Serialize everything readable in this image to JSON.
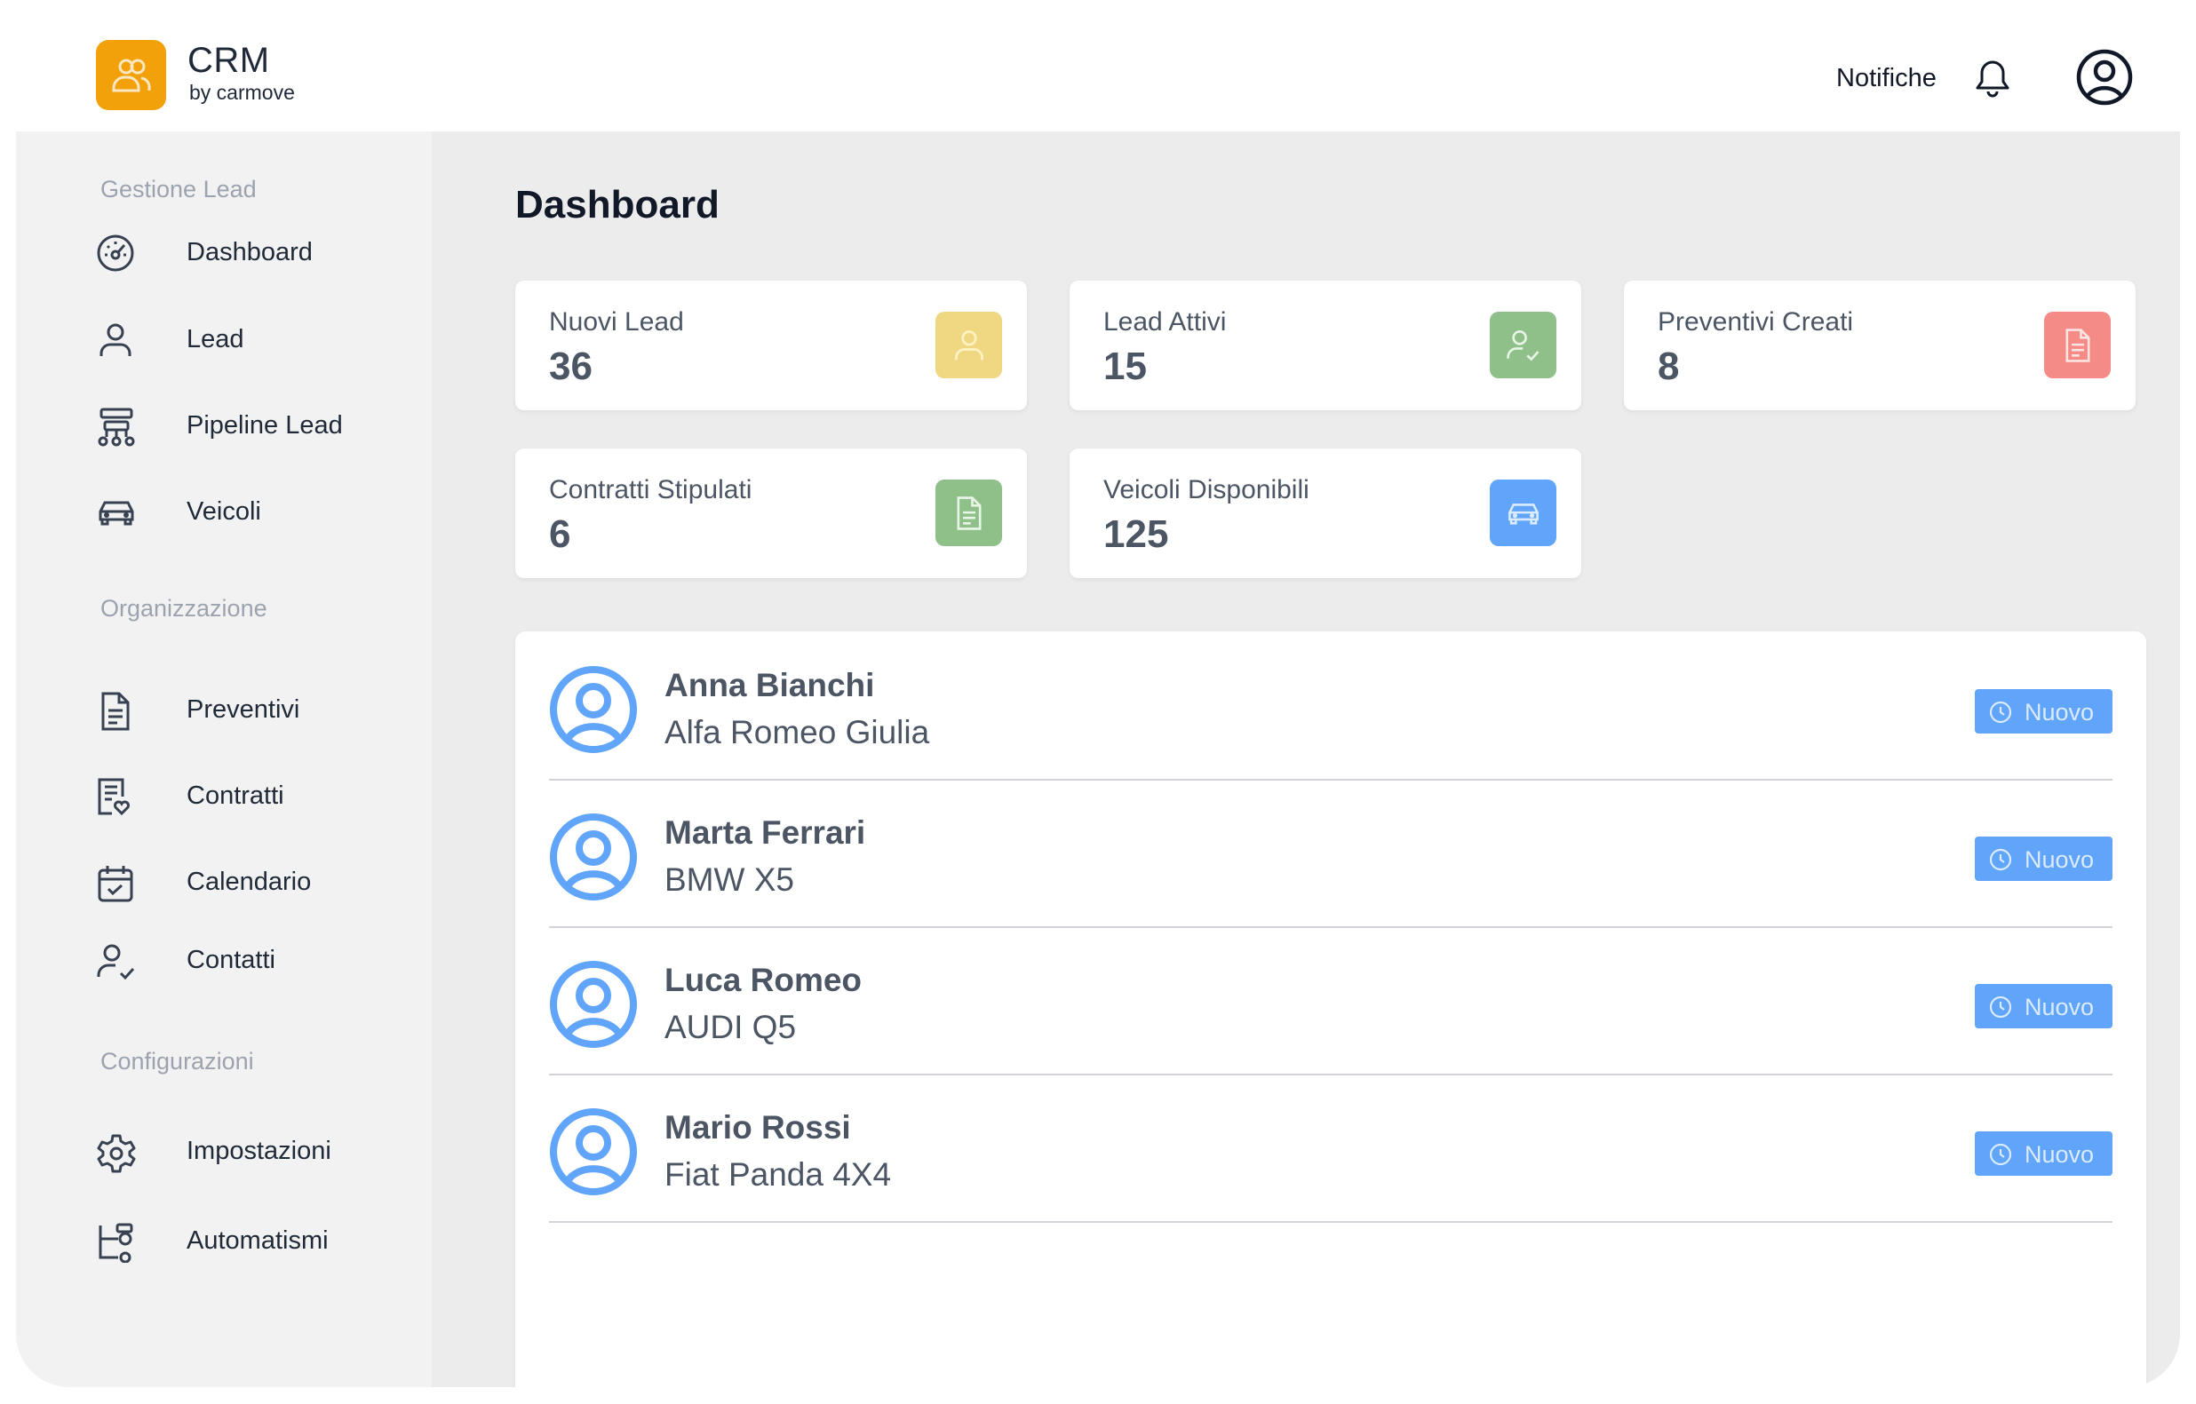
{
  "header": {
    "brand_title": "CRM",
    "brand_subtitle": "by carmove",
    "notifications_label": "Notifiche",
    "logo_icon": "users-icon",
    "bell_icon": "bell-icon",
    "user_icon": "user-circle-icon",
    "brand_color": "#f2a10a"
  },
  "sidebar": {
    "sections": [
      {
        "title": "Gestione Lead"
      },
      {
        "title": "Organizzazione"
      },
      {
        "title": "Configurazioni"
      }
    ],
    "items": [
      {
        "label": "Dashboard",
        "icon": "gauge-icon"
      },
      {
        "label": "Lead",
        "icon": "user-icon"
      },
      {
        "label": "Pipeline Lead",
        "icon": "pipeline-icon"
      },
      {
        "label": "Veicoli",
        "icon": "car-icon"
      },
      {
        "label": "Preventivi",
        "icon": "document-icon"
      },
      {
        "label": "Contratti",
        "icon": "contract-icon"
      },
      {
        "label": "Calendario",
        "icon": "calendar-icon"
      },
      {
        "label": "Contatti",
        "icon": "user-check-icon"
      },
      {
        "label": "Impostazioni",
        "icon": "gear-icon"
      },
      {
        "label": "Automatismi",
        "icon": "automation-icon"
      }
    ]
  },
  "main": {
    "title": "Dashboard",
    "stats": [
      {
        "label": "Nuovi Lead",
        "value": "36",
        "icon": "user-icon",
        "color": "#f0d882"
      },
      {
        "label": "Lead Attivi",
        "value": "15",
        "icon": "user-check-icon",
        "color": "#8fc08a"
      },
      {
        "label": "Preventivi Creati",
        "value": "8",
        "icon": "document-icon",
        "color": "#f58b86"
      },
      {
        "label": "Contratti Stipulati",
        "value": "6",
        "icon": "document-icon",
        "color": "#8fc08a"
      },
      {
        "label": "Veicoli Disponibili",
        "value": "125",
        "icon": "car-icon",
        "color": "#60a5fa"
      }
    ],
    "leads": [
      {
        "name": "Anna Bianchi",
        "vehicle": "Alfa Romeo Giulia",
        "status": "Nuovo"
      },
      {
        "name": "Marta Ferrari",
        "vehicle": "BMW X5",
        "status": "Nuovo"
      },
      {
        "name": "Luca Romeo",
        "vehicle": "AUDI Q5",
        "status": "Nuovo"
      },
      {
        "name": "Mario Rossi",
        "vehicle": "Fiat Panda 4X4",
        "status": "Nuovo"
      }
    ],
    "status_color": "#60a5fa",
    "avatar_color": "#60a5fa"
  }
}
